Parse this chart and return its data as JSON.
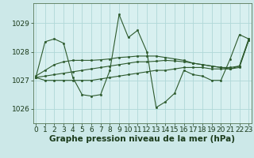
{
  "background_color": "#cce8e8",
  "plot_bg_color": "#d8f0f0",
  "grid_color": "#b0d8d8",
  "line_color": "#2d5a2d",
  "marker_color": "#2d5a2d",
  "xlabel": "Graphe pression niveau de la mer (hPa)",
  "xlabel_color": "#1a3a1a",
  "xlabel_fontsize": 7.5,
  "tick_color": "#1a3a1a",
  "tick_fontsize": 6.5,
  "ylim": [
    1025.5,
    1029.7
  ],
  "xlim": [
    -0.3,
    23.3
  ],
  "yticks": [
    1026,
    1027,
    1028,
    1029
  ],
  "xticks": [
    0,
    1,
    2,
    3,
    4,
    5,
    6,
    7,
    8,
    9,
    10,
    11,
    12,
    13,
    14,
    15,
    16,
    17,
    18,
    19,
    20,
    21,
    22,
    23
  ],
  "series": [
    [
      1027.1,
      1028.35,
      1028.45,
      1028.3,
      1027.1,
      1026.5,
      1026.45,
      1026.5,
      1027.35,
      1029.3,
      1028.5,
      1028.75,
      1028.0,
      1026.05,
      1026.25,
      1026.55,
      1027.35,
      1027.2,
      1027.15,
      1027.0,
      1027.0,
      1027.75,
      1028.6,
      1028.45
    ],
    [
      1027.1,
      1027.15,
      1027.2,
      1027.25,
      1027.3,
      1027.35,
      1027.4,
      1027.45,
      1027.5,
      1027.55,
      1027.6,
      1027.65,
      1027.65,
      1027.67,
      1027.7,
      1027.68,
      1027.65,
      1027.6,
      1027.55,
      1027.5,
      1027.45,
      1027.45,
      1027.5,
      1028.4
    ],
    [
      1027.15,
      1027.35,
      1027.55,
      1027.65,
      1027.7,
      1027.7,
      1027.7,
      1027.72,
      1027.75,
      1027.8,
      1027.82,
      1027.85,
      1027.85,
      1027.85,
      1027.8,
      1027.75,
      1027.7,
      1027.6,
      1027.55,
      1027.5,
      1027.45,
      1027.4,
      1027.5,
      1028.45
    ],
    [
      1027.1,
      1027.0,
      1027.0,
      1027.0,
      1027.0,
      1027.0,
      1027.0,
      1027.05,
      1027.1,
      1027.15,
      1027.2,
      1027.25,
      1027.3,
      1027.35,
      1027.35,
      1027.4,
      1027.45,
      1027.45,
      1027.45,
      1027.4,
      1027.4,
      1027.4,
      1027.45,
      1028.4
    ]
  ]
}
